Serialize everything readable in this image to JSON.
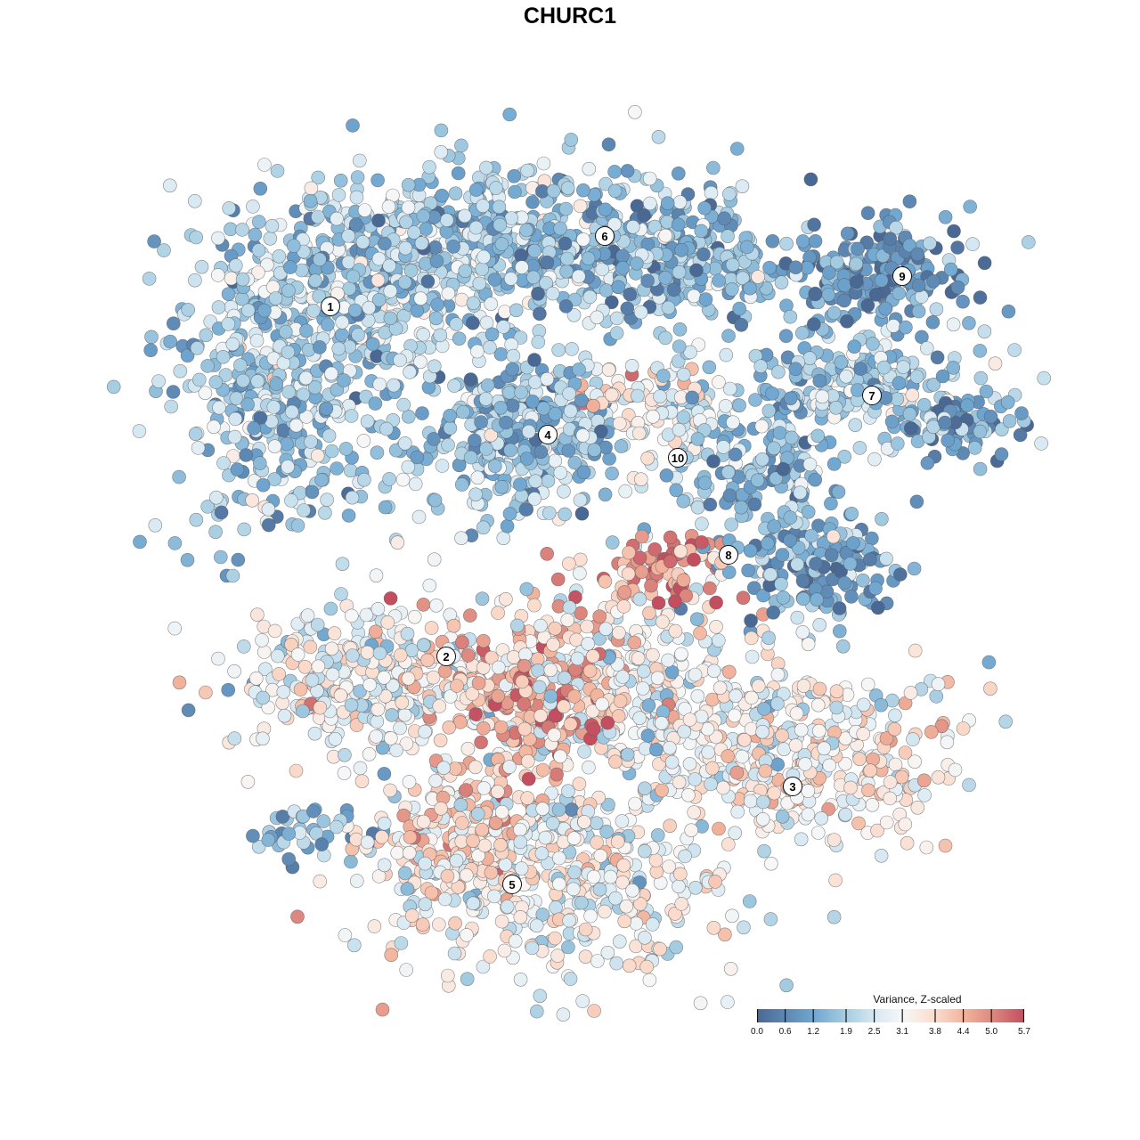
{
  "title": "CHURC1",
  "chart_data": {
    "type": "scatter",
    "title": "CHURC1",
    "xlabel": "",
    "ylabel": "",
    "xlim": [
      -64,
      64
    ],
    "ylim": [
      -64,
      64
    ],
    "grid": false,
    "color_scale": {
      "title": "Variance, Z-scaled",
      "range": [
        0.0,
        5.7
      ],
      "ticks": [
        0.0,
        0.6,
        1.2,
        1.9,
        2.5,
        3.1,
        3.8,
        4.4,
        5.0,
        5.7
      ],
      "tick_labels": [
        "0.0",
        "0.6",
        "1.2",
        "1.9",
        "2.5",
        "3.1",
        "3.8",
        "4.4",
        "5.0",
        "5.7"
      ],
      "stops": [
        {
          "v": 0.0,
          "color": "#4a6894"
        },
        {
          "v": 1.2,
          "color": "#6fa6d0"
        },
        {
          "v": 1.9,
          "color": "#a6cde2"
        },
        {
          "v": 2.5,
          "color": "#d6e8f2"
        },
        {
          "v": 3.1,
          "color": "#f7f7f7"
        },
        {
          "v": 3.8,
          "color": "#fbdccd"
        },
        {
          "v": 4.4,
          "color": "#f2b49d"
        },
        {
          "v": 5.0,
          "color": "#de8a80"
        },
        {
          "v": 5.7,
          "color": "#c24e5f"
        }
      ],
      "legend_position": "bottom-right"
    },
    "point_groups": [
      {
        "cluster": "1",
        "x": -32,
        "y": 22,
        "sx": 7,
        "sy": 9,
        "mean_value": 1.9,
        "n": 500
      },
      {
        "cluster": "1",
        "x": -20,
        "y": 34,
        "sx": 8,
        "sy": 5,
        "mean_value": 2.2,
        "n": 300
      },
      {
        "cluster": "6",
        "x": -2,
        "y": 37,
        "sx": 11,
        "sy": 4.5,
        "mean_value": 1.6,
        "n": 500
      },
      {
        "cluster": "6",
        "x": 14,
        "y": 34,
        "sx": 5,
        "sy": 3,
        "mean_value": 1.7,
        "n": 150
      },
      {
        "cluster": "9",
        "x": 34,
        "y": 33,
        "sx": 6,
        "sy": 3,
        "mean_value": 1.0,
        "n": 200
      },
      {
        "cluster": "7",
        "x": 32,
        "y": 21,
        "sx": 7,
        "sy": 3,
        "mean_value": 2.0,
        "n": 200
      },
      {
        "cluster": "7",
        "x": 43,
        "y": 16,
        "sx": 3.5,
        "sy": 1.5,
        "mean_value": 1.2,
        "n": 80
      },
      {
        "cluster": "4",
        "x": -6,
        "y": 15,
        "sx": 5.5,
        "sy": 5,
        "mean_value": 1.7,
        "n": 350
      },
      {
        "cluster": "4",
        "x": 6,
        "y": 19,
        "sx": 4,
        "sy": 2,
        "mean_value": 3.4,
        "n": 60
      },
      {
        "cluster": "10",
        "x": 13,
        "y": 16,
        "sx": 3,
        "sy": 4,
        "mean_value": 2.6,
        "n": 80
      },
      {
        "cluster": "10",
        "x": 22,
        "y": 11,
        "sx": 4,
        "sy": 4,
        "mean_value": 1.6,
        "n": 150
      },
      {
        "cluster": "8",
        "x": 28,
        "y": 0,
        "sx": 4.5,
        "sy": 3,
        "mean_value": 1.2,
        "n": 180
      },
      {
        "cluster": "8",
        "x": 10,
        "y": 0,
        "sx": 5,
        "sy": 2,
        "mean_value": 4.8,
        "n": 80
      },
      {
        "cluster": "2",
        "x": -22,
        "y": -12,
        "sx": 8,
        "sy": 4,
        "mean_value": 3.0,
        "n": 350
      },
      {
        "cluster": "2",
        "x": -4,
        "y": -14,
        "sx": 5,
        "sy": 5,
        "mean_value": 4.6,
        "n": 200
      },
      {
        "cluster": "2",
        "x": 6,
        "y": -12,
        "sx": 7,
        "sy": 5,
        "mean_value": 3.0,
        "n": 300
      },
      {
        "cluster": "3",
        "x": 26,
        "y": -21,
        "sx": 9,
        "sy": 5,
        "mean_value": 3.2,
        "n": 400
      },
      {
        "cluster": "5",
        "x": -2,
        "y": -34,
        "sx": 10,
        "sy": 6,
        "mean_value": 3.0,
        "n": 500
      },
      {
        "cluster": "5",
        "x": -12,
        "y": -29,
        "sx": 4,
        "sy": 4,
        "mean_value": 4.0,
        "n": 150
      },
      {
        "cluster": "5",
        "x": -30,
        "y": -29,
        "sx": 3.5,
        "sy": 2,
        "mean_value": 1.5,
        "n": 40
      }
    ],
    "cluster_labels": [
      {
        "label": "1",
        "x": -26.9,
        "y": 29.6
      },
      {
        "label": "2",
        "x": -13.9,
        "y": -9.7
      },
      {
        "label": "3",
        "x": 25.0,
        "y": -24.3
      },
      {
        "label": "4",
        "x": -2.5,
        "y": 15.2
      },
      {
        "label": "5",
        "x": -6.5,
        "y": -35.3
      },
      {
        "label": "6",
        "x": 3.9,
        "y": 37.5
      },
      {
        "label": "7",
        "x": 33.9,
        "y": 19.6
      },
      {
        "label": "8",
        "x": 17.8,
        "y": 1.7
      },
      {
        "label": "9",
        "x": 37.3,
        "y": 33.0
      },
      {
        "label": "10",
        "x": 12.1,
        "y": 12.6
      }
    ]
  }
}
